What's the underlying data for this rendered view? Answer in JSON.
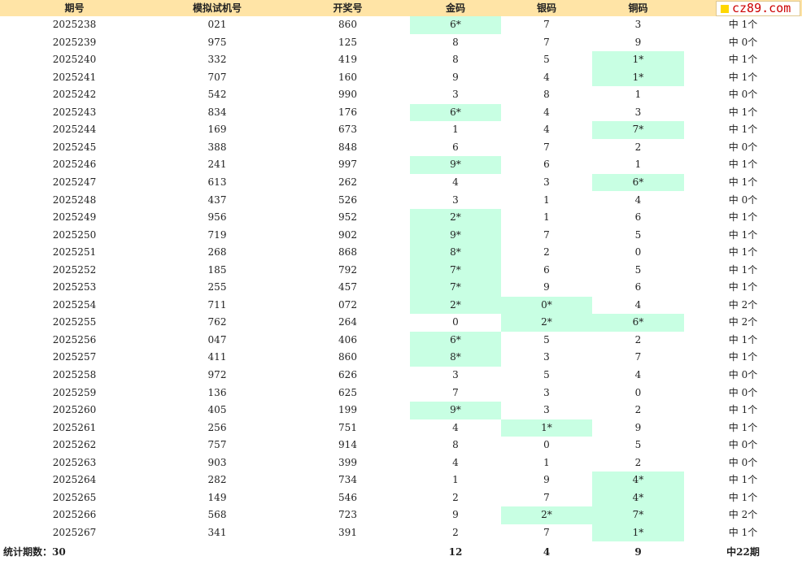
{
  "header": {
    "issue": "期号",
    "simulated": "模拟试机号",
    "draw": "开奖号",
    "gold": "金码",
    "silver": "银码",
    "bronze": "铜码"
  },
  "logo": {
    "text": "cz89.com",
    "accent": "#ffd700",
    "text_color": "#cc0000"
  },
  "colors": {
    "header_bg": "#ffe4a6",
    "hit_bg": "#c8ffe3"
  },
  "rows": [
    {
      "issue": "2025238",
      "sim": "021",
      "draw": "860",
      "gold": "6*",
      "silver": "7",
      "bronze": "3",
      "result": "中 1个",
      "hit": [
        1,
        0,
        0
      ]
    },
    {
      "issue": "2025239",
      "sim": "975",
      "draw": "125",
      "gold": "8",
      "silver": "7",
      "bronze": "9",
      "result": "中 0个",
      "hit": [
        0,
        0,
        0
      ]
    },
    {
      "issue": "2025240",
      "sim": "332",
      "draw": "419",
      "gold": "8",
      "silver": "5",
      "bronze": "1*",
      "result": "中 1个",
      "hit": [
        0,
        0,
        1
      ]
    },
    {
      "issue": "2025241",
      "sim": "707",
      "draw": "160",
      "gold": "9",
      "silver": "4",
      "bronze": "1*",
      "result": "中 1个",
      "hit": [
        0,
        0,
        1
      ]
    },
    {
      "issue": "2025242",
      "sim": "542",
      "draw": "990",
      "gold": "3",
      "silver": "8",
      "bronze": "1",
      "result": "中 0个",
      "hit": [
        0,
        0,
        0
      ]
    },
    {
      "issue": "2025243",
      "sim": "834",
      "draw": "176",
      "gold": "6*",
      "silver": "4",
      "bronze": "3",
      "result": "中 1个",
      "hit": [
        1,
        0,
        0
      ]
    },
    {
      "issue": "2025244",
      "sim": "169",
      "draw": "673",
      "gold": "1",
      "silver": "4",
      "bronze": "7*",
      "result": "中 1个",
      "hit": [
        0,
        0,
        1
      ]
    },
    {
      "issue": "2025245",
      "sim": "388",
      "draw": "848",
      "gold": "6",
      "silver": "7",
      "bronze": "2",
      "result": "中 0个",
      "hit": [
        0,
        0,
        0
      ]
    },
    {
      "issue": "2025246",
      "sim": "241",
      "draw": "997",
      "gold": "9*",
      "silver": "6",
      "bronze": "1",
      "result": "中 1个",
      "hit": [
        1,
        0,
        0
      ]
    },
    {
      "issue": "2025247",
      "sim": "613",
      "draw": "262",
      "gold": "4",
      "silver": "3",
      "bronze": "6*",
      "result": "中 1个",
      "hit": [
        0,
        0,
        1
      ]
    },
    {
      "issue": "2025248",
      "sim": "437",
      "draw": "526",
      "gold": "3",
      "silver": "1",
      "bronze": "4",
      "result": "中 0个",
      "hit": [
        0,
        0,
        0
      ]
    },
    {
      "issue": "2025249",
      "sim": "956",
      "draw": "952",
      "gold": "2*",
      "silver": "1",
      "bronze": "6",
      "result": "中 1个",
      "hit": [
        1,
        0,
        0
      ]
    },
    {
      "issue": "2025250",
      "sim": "719",
      "draw": "902",
      "gold": "9*",
      "silver": "7",
      "bronze": "5",
      "result": "中 1个",
      "hit": [
        1,
        0,
        0
      ]
    },
    {
      "issue": "2025251",
      "sim": "268",
      "draw": "868",
      "gold": "8*",
      "silver": "2",
      "bronze": "0",
      "result": "中 1个",
      "hit": [
        1,
        0,
        0
      ]
    },
    {
      "issue": "2025252",
      "sim": "185",
      "draw": "792",
      "gold": "7*",
      "silver": "6",
      "bronze": "5",
      "result": "中 1个",
      "hit": [
        1,
        0,
        0
      ]
    },
    {
      "issue": "2025253",
      "sim": "255",
      "draw": "457",
      "gold": "7*",
      "silver": "9",
      "bronze": "6",
      "result": "中 1个",
      "hit": [
        1,
        0,
        0
      ]
    },
    {
      "issue": "2025254",
      "sim": "711",
      "draw": "072",
      "gold": "2*",
      "silver": "0*",
      "bronze": "4",
      "result": "中 2个",
      "hit": [
        1,
        1,
        0
      ]
    },
    {
      "issue": "2025255",
      "sim": "762",
      "draw": "264",
      "gold": "0",
      "silver": "2*",
      "bronze": "6*",
      "result": "中 2个",
      "hit": [
        0,
        1,
        1
      ]
    },
    {
      "issue": "2025256",
      "sim": "047",
      "draw": "406",
      "gold": "6*",
      "silver": "5",
      "bronze": "2",
      "result": "中 1个",
      "hit": [
        1,
        0,
        0
      ]
    },
    {
      "issue": "2025257",
      "sim": "411",
      "draw": "860",
      "gold": "8*",
      "silver": "3",
      "bronze": "7",
      "result": "中 1个",
      "hit": [
        1,
        0,
        0
      ]
    },
    {
      "issue": "2025258",
      "sim": "972",
      "draw": "626",
      "gold": "3",
      "silver": "5",
      "bronze": "4",
      "result": "中 0个",
      "hit": [
        0,
        0,
        0
      ]
    },
    {
      "issue": "2025259",
      "sim": "136",
      "draw": "625",
      "gold": "7",
      "silver": "3",
      "bronze": "0",
      "result": "中 0个",
      "hit": [
        0,
        0,
        0
      ]
    },
    {
      "issue": "2025260",
      "sim": "405",
      "draw": "199",
      "gold": "9*",
      "silver": "3",
      "bronze": "2",
      "result": "中 1个",
      "hit": [
        1,
        0,
        0
      ]
    },
    {
      "issue": "2025261",
      "sim": "256",
      "draw": "751",
      "gold": "4",
      "silver": "1*",
      "bronze": "9",
      "result": "中 1个",
      "hit": [
        0,
        1,
        0
      ]
    },
    {
      "issue": "2025262",
      "sim": "757",
      "draw": "914",
      "gold": "8",
      "silver": "0",
      "bronze": "5",
      "result": "中 0个",
      "hit": [
        0,
        0,
        0
      ]
    },
    {
      "issue": "2025263",
      "sim": "903",
      "draw": "399",
      "gold": "4",
      "silver": "1",
      "bronze": "2",
      "result": "中 0个",
      "hit": [
        0,
        0,
        0
      ]
    },
    {
      "issue": "2025264",
      "sim": "282",
      "draw": "734",
      "gold": "1",
      "silver": "9",
      "bronze": "4*",
      "result": "中 1个",
      "hit": [
        0,
        0,
        1
      ]
    },
    {
      "issue": "2025265",
      "sim": "149",
      "draw": "546",
      "gold": "2",
      "silver": "7",
      "bronze": "4*",
      "result": "中 1个",
      "hit": [
        0,
        0,
        1
      ]
    },
    {
      "issue": "2025266",
      "sim": "568",
      "draw": "723",
      "gold": "9",
      "silver": "2*",
      "bronze": "7*",
      "result": "中 2个",
      "hit": [
        0,
        1,
        1
      ]
    },
    {
      "issue": "2025267",
      "sim": "341",
      "draw": "391",
      "gold": "2",
      "silver": "7",
      "bronze": "1*",
      "result": "中 1个",
      "hit": [
        0,
        0,
        1
      ]
    }
  ],
  "footer": {
    "label": "统计期数：30",
    "gold_total": "12",
    "silver_total": "4",
    "bronze_total": "9",
    "hit_total": "中22期"
  }
}
